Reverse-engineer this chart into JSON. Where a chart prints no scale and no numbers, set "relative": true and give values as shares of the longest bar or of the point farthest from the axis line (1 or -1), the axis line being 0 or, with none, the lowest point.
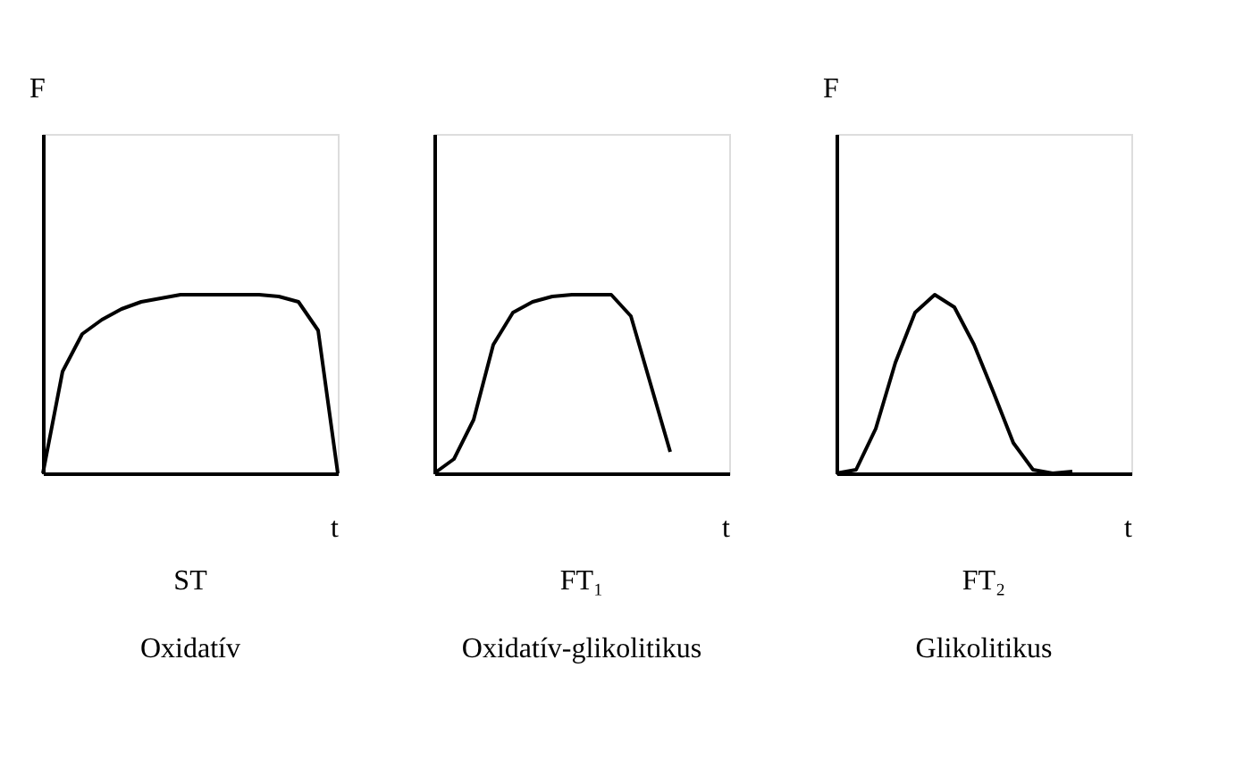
{
  "chart_data": [
    {
      "type": "line",
      "title": "ST",
      "subtitle": "Oxidatív",
      "xlabel": "t",
      "ylabel": "F",
      "relative": true,
      "tick_labels": false,
      "categories": [
        null,
        null,
        null,
        null,
        null,
        null,
        null,
        null,
        null,
        null,
        null,
        null,
        null,
        null,
        null,
        null
      ],
      "series": [
        {
          "color": "#000000",
          "values": [
            0,
            0.57,
            0.78,
            0.86,
            0.92,
            0.96,
            0.98,
            1,
            1,
            1,
            1,
            1,
            0.99,
            0.96,
            0.8,
            0
          ]
        }
      ]
    },
    {
      "type": "line",
      "title": "FT₁",
      "subtitle": "Oxidatív-glikolitikus",
      "xlabel": "t",
      "relative": true,
      "tick_labels": false,
      "categories": [
        null,
        null,
        null,
        null,
        null,
        null,
        null,
        null,
        null,
        null,
        null,
        null,
        null,
        null,
        null,
        null
      ],
      "series": [
        {
          "color": "#000000",
          "values": [
            0,
            0.08,
            0.3,
            0.72,
            0.9,
            0.96,
            0.99,
            1,
            1,
            1,
            0.88,
            0.5,
            0.12,
            null,
            null,
            null
          ]
        }
      ]
    },
    {
      "type": "line",
      "title": "FT₂",
      "subtitle": "Glikolitikus",
      "xlabel": "t",
      "ylabel": "F",
      "relative": true,
      "tick_labels": false,
      "categories": [
        null,
        null,
        null,
        null,
        null,
        null,
        null,
        null,
        null,
        null,
        null,
        null,
        null,
        null,
        null,
        null
      ],
      "series": [
        {
          "color": "#000000",
          "values": [
            0,
            0.02,
            0.25,
            0.62,
            0.9,
            1,
            0.93,
            0.72,
            0.45,
            0.17,
            0.02,
            0,
            0.01,
            null,
            null,
            null
          ]
        }
      ]
    }
  ]
}
